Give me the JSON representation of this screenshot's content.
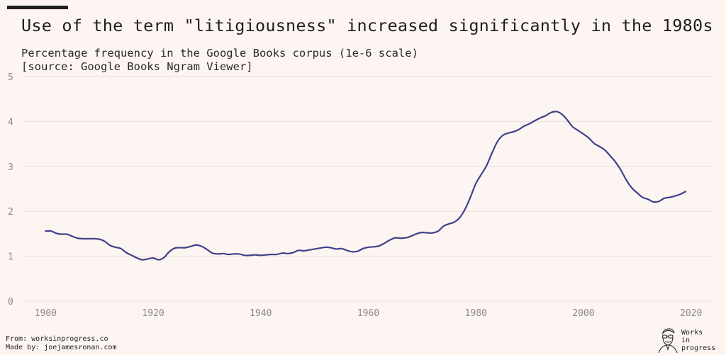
{
  "header": {
    "title": "Use of the term \"litigiousness\" increased significantly in the 1980s",
    "subtitle_line1": "Percentage frequency in the Google Books corpus (1e-6 scale)",
    "subtitle_line2": "[source: Google Books Ngram Viewer]"
  },
  "footer": {
    "line1": "From: worksinprogress.co",
    "line2": "Made by: joejamesronan.com"
  },
  "logo": {
    "line1": "Works",
    "line2": "in",
    "line3": "progress",
    "icon": "portrait-sketch-icon"
  },
  "colors": {
    "background": "#fdf5f2",
    "line": "#3f418b",
    "grid": "#e9dedb",
    "tick_text": "#8a8a8a"
  },
  "chart_data": {
    "type": "line",
    "title": "Use of the term \"litigiousness\" increased significantly in the 1980s",
    "xlabel": "",
    "ylabel": "",
    "xlim": [
      1896,
      2024
    ],
    "ylim": [
      0,
      5
    ],
    "xticks": [
      1900,
      1920,
      1940,
      1960,
      1980,
      2000,
      2020
    ],
    "yticks": [
      0,
      1,
      2,
      3,
      4,
      5
    ],
    "grid": "horizontal",
    "series": [
      {
        "x": [
          1900,
          1901,
          1902,
          1903,
          1904,
          1905,
          1906,
          1907,
          1908,
          1909,
          1910,
          1911,
          1912,
          1913,
          1914,
          1915,
          1916,
          1917,
          1918,
          1919,
          1920,
          1921,
          1922,
          1923,
          1924,
          1925,
          1926,
          1927,
          1928,
          1929,
          1930,
          1931,
          1932,
          1933,
          1934,
          1935,
          1936,
          1937,
          1938,
          1939,
          1940,
          1941,
          1942,
          1943,
          1944,
          1945,
          1946,
          1947,
          1948,
          1949,
          1950,
          1951,
          1952,
          1953,
          1954,
          1955,
          1956,
          1957,
          1958,
          1959,
          1960,
          1961,
          1962,
          1963,
          1964,
          1965,
          1966,
          1967,
          1968,
          1969,
          1970,
          1971,
          1972,
          1973,
          1974,
          1975,
          1976,
          1977,
          1978,
          1979,
          1980,
          1981,
          1982,
          1983,
          1984,
          1985,
          1986,
          1987,
          1988,
          1989,
          1990,
          1991,
          1992,
          1993,
          1994,
          1995,
          1996,
          1997,
          1998,
          1999,
          2000,
          2001,
          2002,
          2003,
          2004,
          2005,
          2006,
          2007,
          2008,
          2009,
          2010,
          2011,
          2012,
          2013,
          2014,
          2015,
          2016,
          2017,
          2018,
          2019
        ],
        "values": [
          1.56,
          1.56,
          1.51,
          1.49,
          1.49,
          1.44,
          1.4,
          1.39,
          1.39,
          1.39,
          1.38,
          1.33,
          1.24,
          1.2,
          1.17,
          1.08,
          1.02,
          0.96,
          0.92,
          0.94,
          0.96,
          0.92,
          0.97,
          1.1,
          1.18,
          1.19,
          1.19,
          1.22,
          1.25,
          1.22,
          1.15,
          1.07,
          1.05,
          1.06,
          1.04,
          1.05,
          1.05,
          1.02,
          1.02,
          1.03,
          1.02,
          1.03,
          1.04,
          1.04,
          1.07,
          1.06,
          1.08,
          1.13,
          1.12,
          1.14,
          1.16,
          1.18,
          1.2,
          1.19,
          1.16,
          1.17,
          1.13,
          1.1,
          1.11,
          1.17,
          1.2,
          1.21,
          1.23,
          1.29,
          1.36,
          1.41,
          1.4,
          1.41,
          1.45,
          1.5,
          1.53,
          1.52,
          1.52,
          1.56,
          1.67,
          1.72,
          1.76,
          1.86,
          2.05,
          2.32,
          2.62,
          2.82,
          3.02,
          3.3,
          3.55,
          3.69,
          3.74,
          3.77,
          3.82,
          3.9,
          3.95,
          4.02,
          4.08,
          4.13,
          4.2,
          4.22,
          4.16,
          4.03,
          3.88,
          3.8,
          3.72,
          3.63,
          3.51,
          3.44,
          3.36,
          3.23,
          3.09,
          2.91,
          2.69,
          2.52,
          2.41,
          2.31,
          2.27,
          2.21,
          2.22,
          2.29,
          2.31,
          2.34,
          2.38,
          2.44
        ]
      }
    ]
  }
}
